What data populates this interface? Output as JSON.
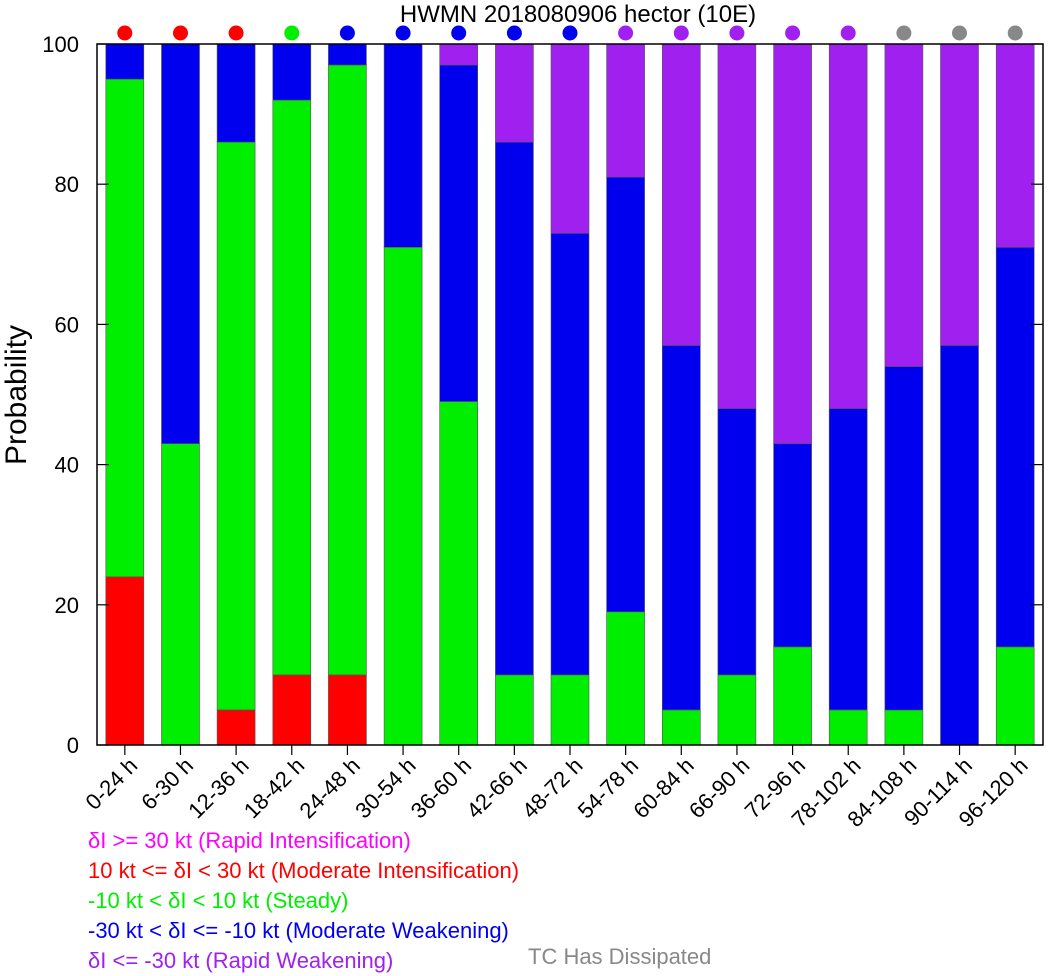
{
  "chart_data": {
    "type": "bar",
    "stacked": true,
    "title": "HWMN 2018080906 hector (10E)",
    "ylabel": "Probability",
    "xlabel": "",
    "ylim": [
      0,
      100
    ],
    "yticks": [
      0,
      20,
      40,
      60,
      80,
      100
    ],
    "categories": [
      "0-24 h",
      "6-30 h",
      "12-36 h",
      "18-42 h",
      "24-48 h",
      "30-54 h",
      "36-60 h",
      "42-66 h",
      "48-72 h",
      "54-78 h",
      "60-84 h",
      "66-90 h",
      "72-96 h",
      "78-102 h",
      "84-108 h",
      "90-114 h",
      "96-120 h"
    ],
    "series": [
      {
        "key": "ri",
        "color": "#ff00ff",
        "values": [
          0,
          0,
          0,
          0,
          0,
          0,
          0,
          0,
          0,
          0,
          0,
          0,
          0,
          0,
          0,
          0,
          0
        ]
      },
      {
        "key": "mi",
        "color": "#ff0000",
        "values": [
          24,
          0,
          5,
          10,
          10,
          0,
          0,
          0,
          0,
          0,
          0,
          0,
          0,
          0,
          0,
          0,
          0
        ]
      },
      {
        "key": "steady",
        "color": "#00ee00",
        "values": [
          71,
          43,
          81,
          82,
          87,
          71,
          49,
          10,
          10,
          19,
          5,
          10,
          14,
          5,
          5,
          0,
          14
        ]
      },
      {
        "key": "mw",
        "color": "#0000ee",
        "values": [
          5,
          57,
          14,
          8,
          3,
          29,
          48,
          76,
          63,
          62,
          52,
          38,
          29,
          43,
          49,
          57,
          57
        ]
      },
      {
        "key": "rw",
        "color": "#a020f0",
        "values": [
          0,
          0,
          0,
          0,
          0,
          0,
          3,
          14,
          27,
          19,
          43,
          52,
          57,
          52,
          46,
          43,
          29
        ]
      }
    ],
    "top_markers": [
      "#ff0000",
      "#ff0000",
      "#ff0000",
      "#00ee00",
      "#0000ee",
      "#0000ee",
      "#0000ee",
      "#0000ee",
      "#0000ee",
      "#a020f0",
      "#a020f0",
      "#a020f0",
      "#a020f0",
      "#a020f0",
      "#888888",
      "#888888",
      "#888888"
    ],
    "legend": [
      {
        "text": "δI >= 30 kt (Rapid Intensification)",
        "color": "#ff00ff"
      },
      {
        "text": "10 kt <= δI < 30 kt (Moderate Intensification)",
        "color": "#ff0000"
      },
      {
        "text": "-10 kt < δI < 10 kt (Steady)",
        "color": "#00ee00"
      },
      {
        "text": "-30 kt < δI <= -10 kt (Moderate Weakening)",
        "color": "#0000ee"
      },
      {
        "text": "δI <= -30 kt (Rapid Weakening)",
        "color": "#a020f0"
      }
    ],
    "dissipated_label": {
      "text": "TC Has Dissipated",
      "color": "#888888"
    }
  }
}
